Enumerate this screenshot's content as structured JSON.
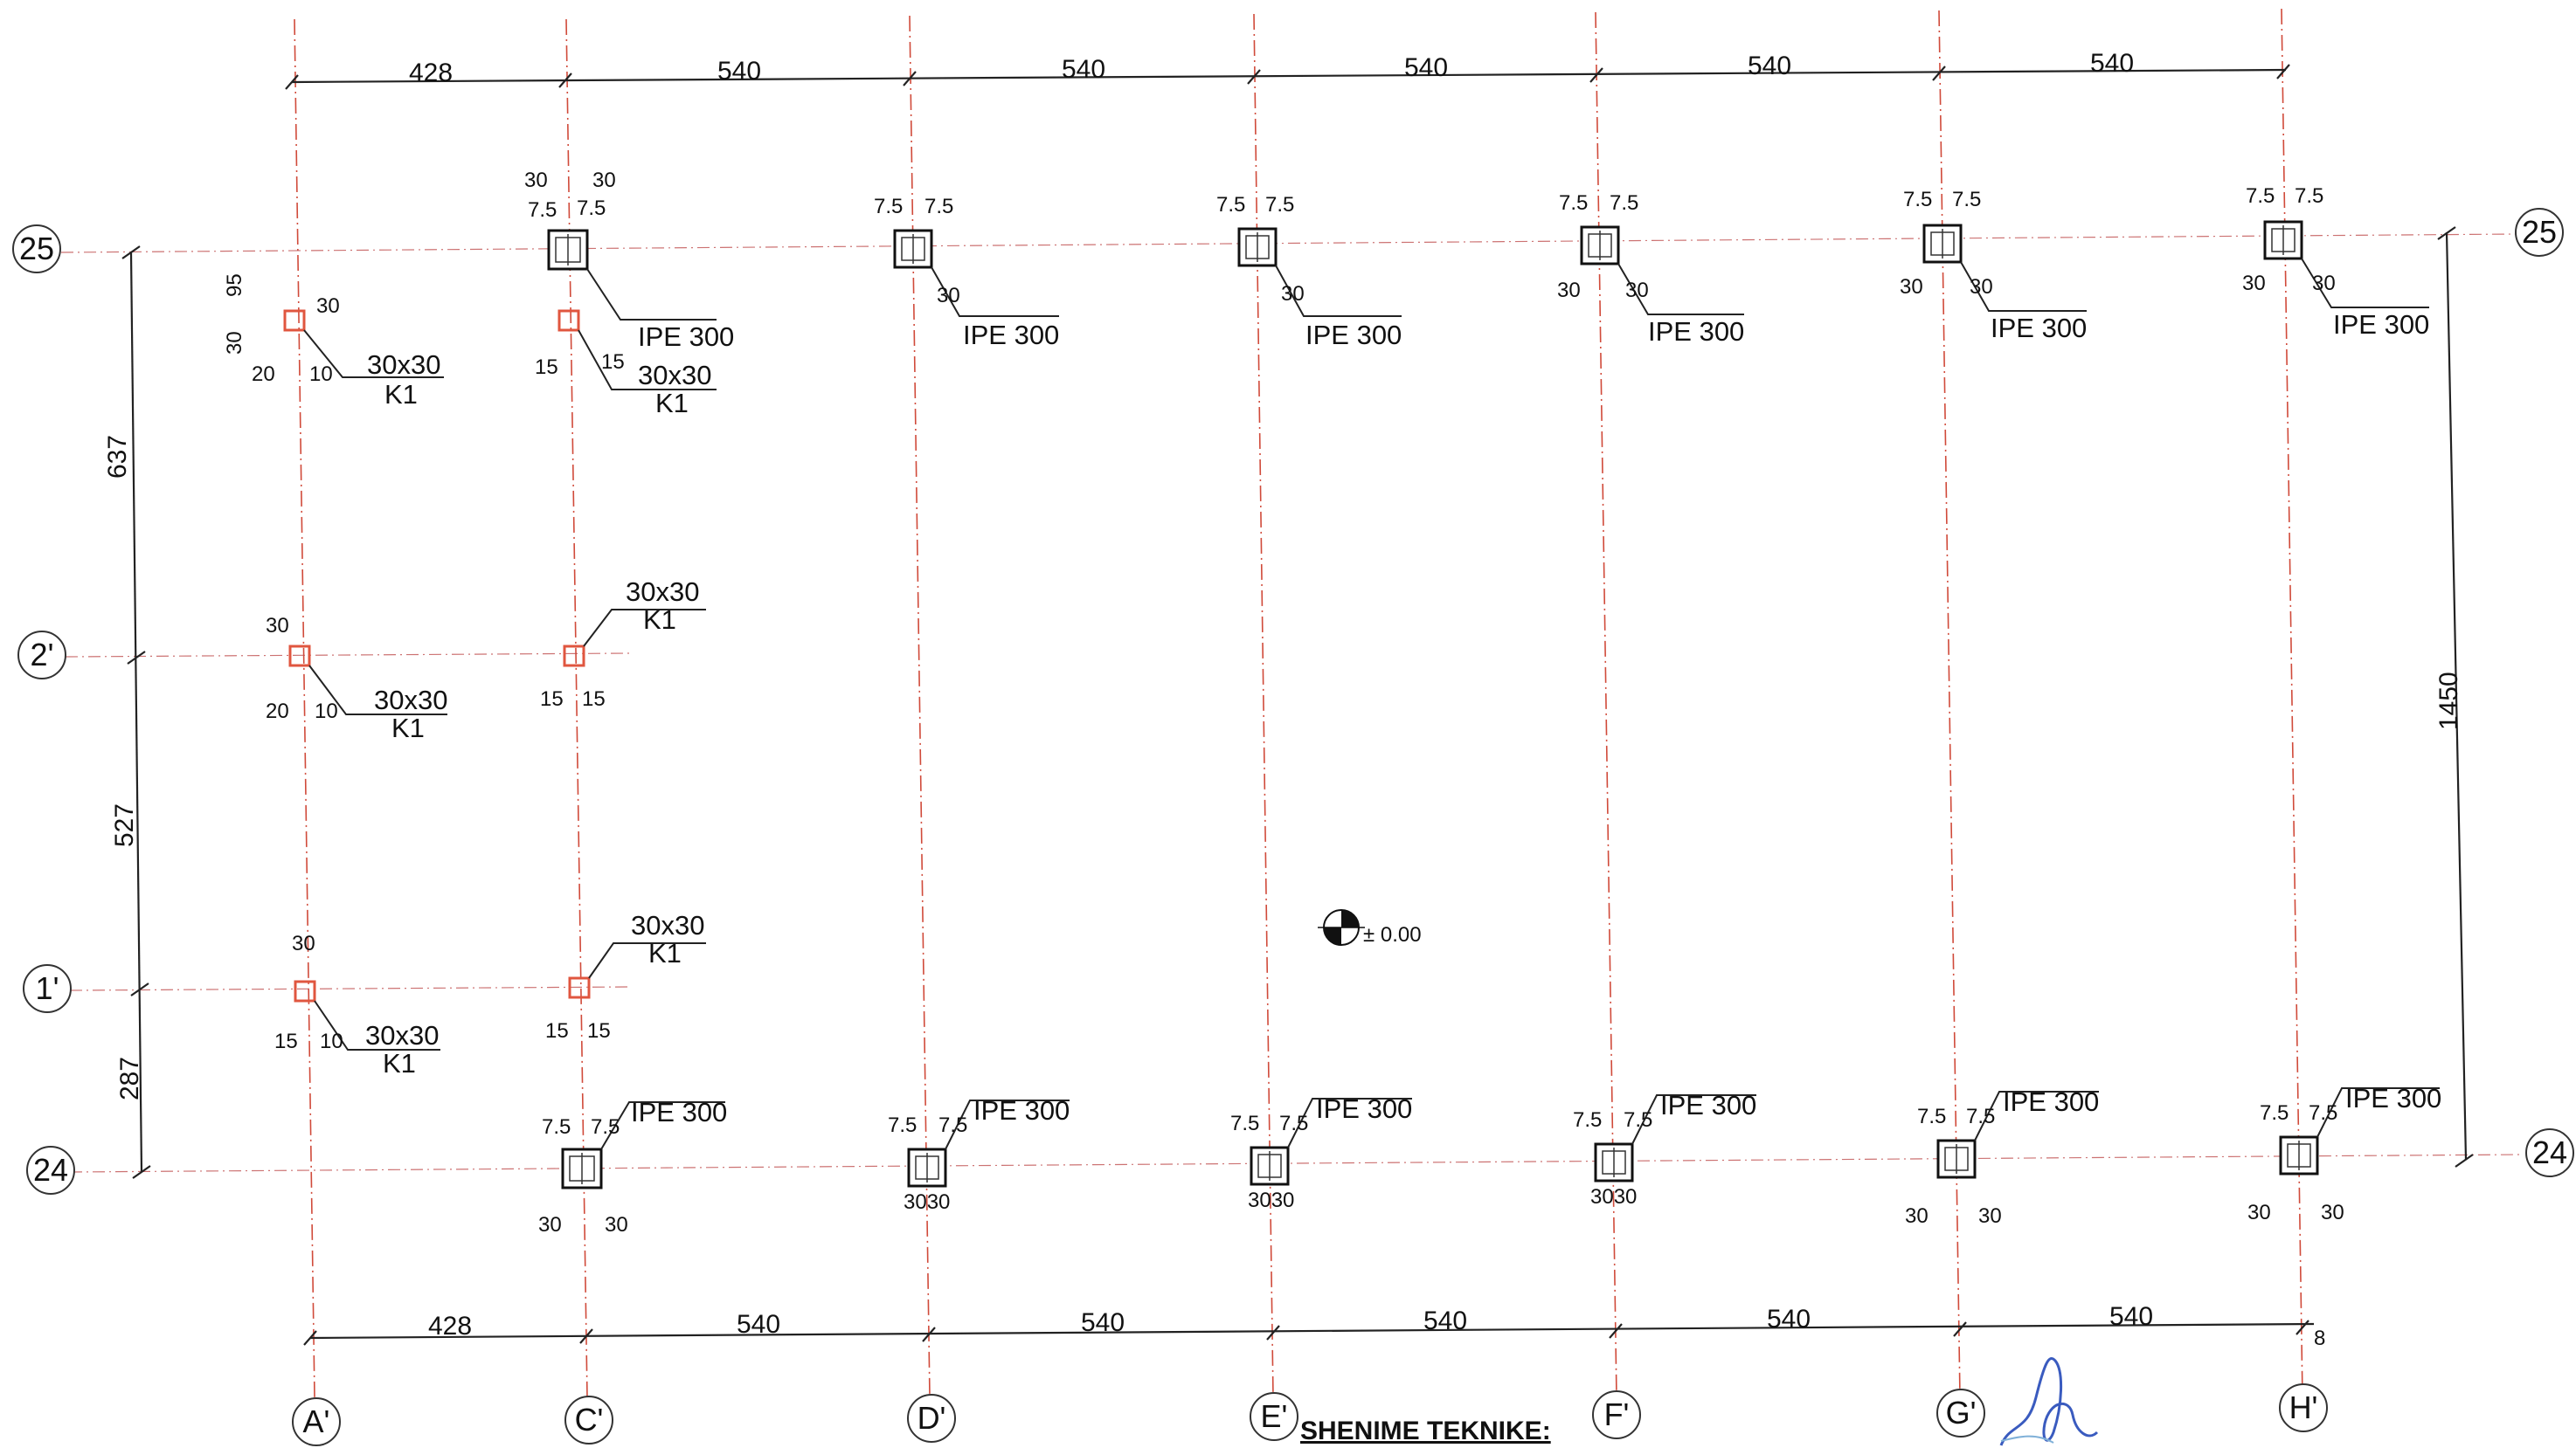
{
  "grid": {
    "columns": [
      "A'",
      "C'",
      "D'",
      "E'",
      "F'",
      "G'",
      "H'"
    ],
    "rows": [
      "25",
      "2'",
      "1'",
      "24"
    ]
  },
  "dimensions": {
    "top": [
      "428",
      "540",
      "540",
      "540",
      "540",
      "540"
    ],
    "bottom": [
      "428",
      "540",
      "540",
      "540",
      "540",
      "540"
    ],
    "bottom_end": "8",
    "left": [
      "637",
      "527",
      "287"
    ],
    "right": "1450"
  },
  "labels": {
    "ipe": "IPE 300",
    "column_size": "30x30",
    "column_type": "K1"
  },
  "plate_dims": {
    "half": "7.5",
    "thirty": "30",
    "fifteen": "15",
    "twenty": "20",
    "ten": "10",
    "ninety_five": "95",
    "three_zero": "3030"
  },
  "elevation": "± 0.00",
  "notes": {
    "title": "SHENIME TEKNIKE:"
  },
  "colors": {
    "grid": "#d04a3a",
    "column": "#e0563f",
    "ink": "#111111"
  }
}
